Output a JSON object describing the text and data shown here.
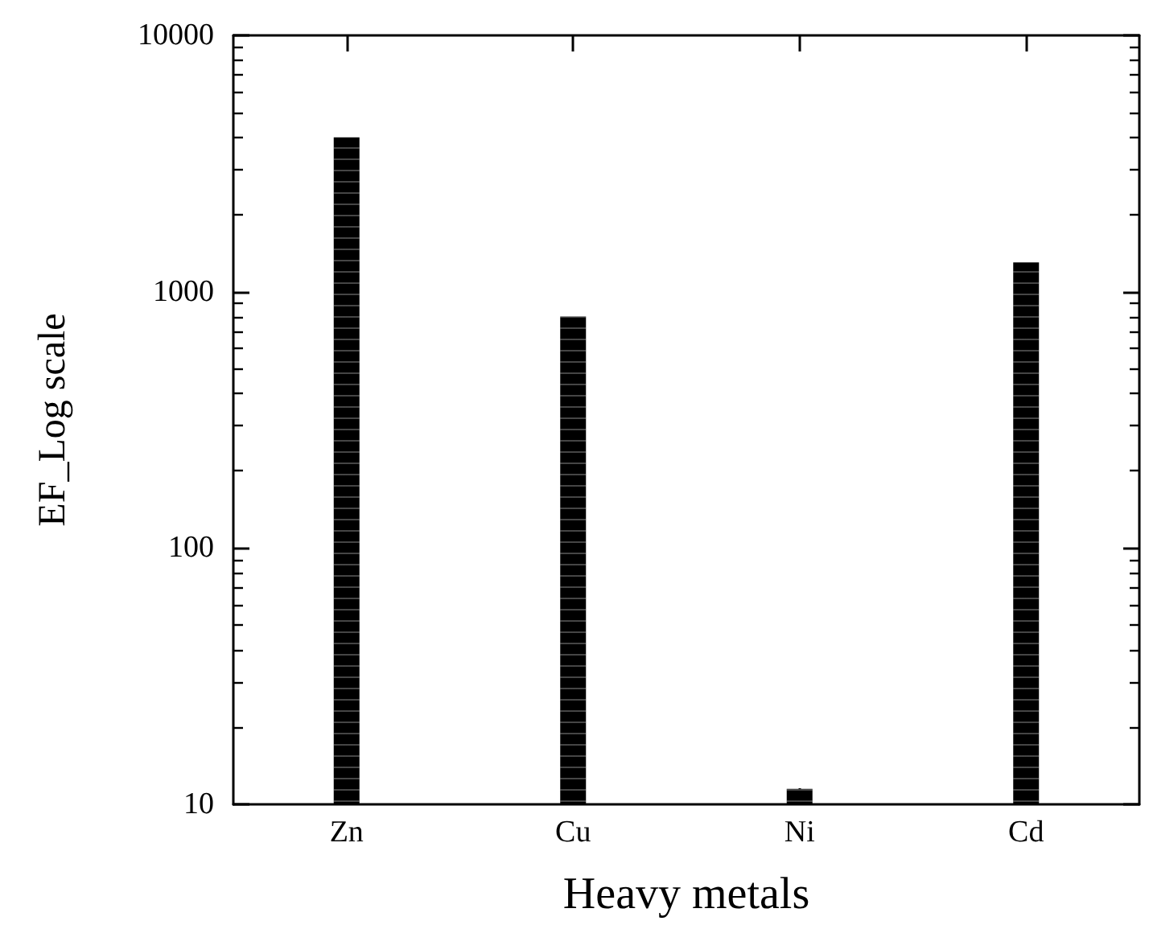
{
  "chart_data": {
    "type": "bar",
    "xlabel": "Heavy metals",
    "ylabel": "EF_Log scale",
    "categories": [
      "Zn",
      "Cu",
      "Ni",
      "Cd"
    ],
    "values": [
      4000,
      800,
      11.5,
      1300
    ],
    "color": "#000000",
    "log": "y",
    "ylim": [
      10,
      10000
    ],
    "yticks": [
      10,
      100,
      1000,
      10000
    ],
    "grid": false
  }
}
